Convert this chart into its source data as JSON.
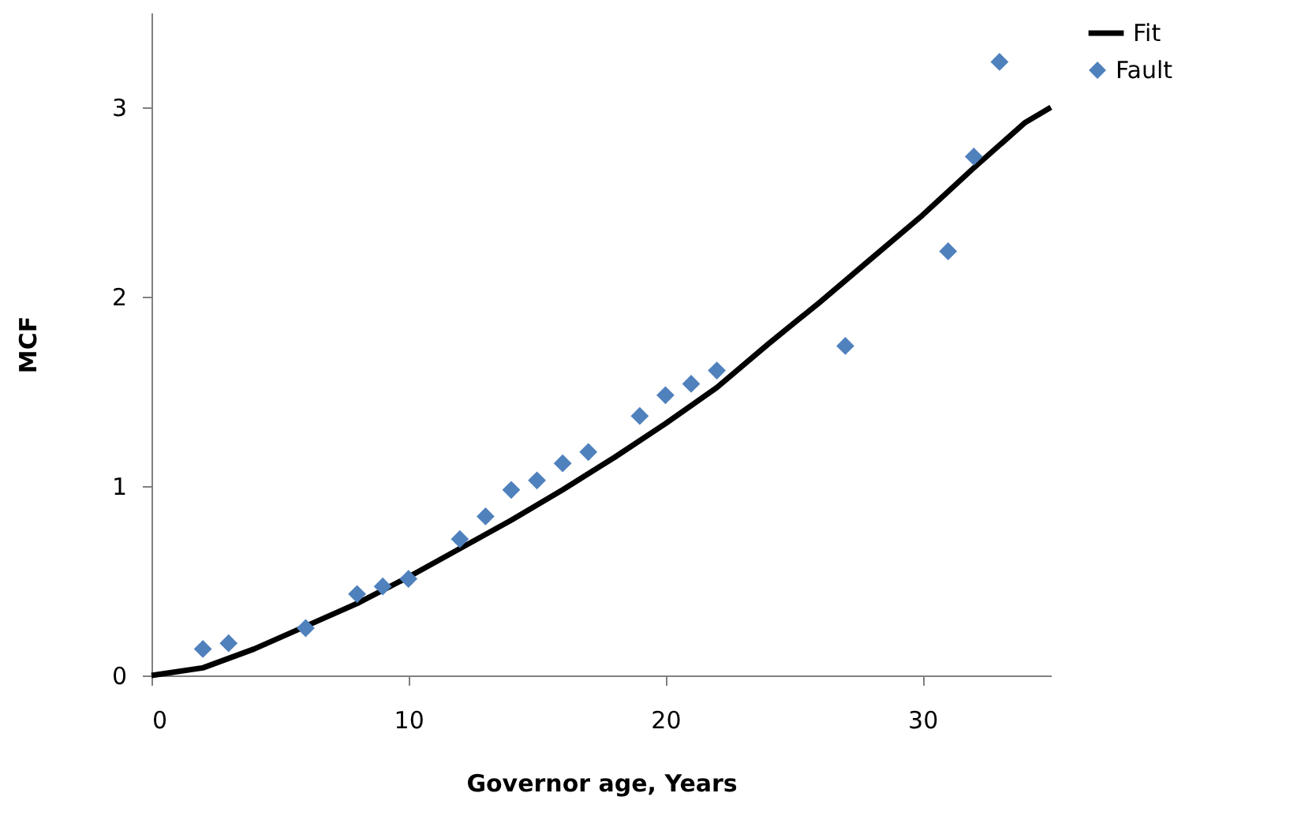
{
  "chart_data": {
    "type": "scatter",
    "xlabel": "Governor age, Years",
    "ylabel": "MCF",
    "xlim": [
      0,
      35
    ],
    "xticks": [
      0,
      10,
      20,
      30
    ],
    "ylim": [
      0,
      3.5
    ],
    "yticks": [
      0,
      1,
      2,
      3
    ],
    "grid": false,
    "legend": "right",
    "series": [
      {
        "name": "Fault",
        "marker": "diamond",
        "color": "#4f81bd",
        "x": [
          2,
          3,
          6,
          8,
          9,
          10,
          12,
          13,
          14,
          15,
          16,
          17,
          19,
          20,
          21,
          22,
          27,
          31,
          32,
          33
        ],
        "values": [
          0.14,
          0.17,
          0.25,
          0.43,
          0.47,
          0.51,
          0.72,
          0.84,
          0.98,
          1.03,
          1.12,
          1.18,
          1.37,
          1.48,
          1.54,
          1.61,
          1.74,
          2.24,
          2.74,
          3.24
        ]
      },
      {
        "name": "Fit",
        "type": "line",
        "color": "#000000",
        "line_style": "solid",
        "x": [
          0,
          2,
          4,
          6,
          8,
          10,
          12,
          14,
          16,
          18,
          20,
          22,
          24,
          26,
          28,
          30,
          32,
          34,
          35
        ],
        "values": [
          0,
          0.04,
          0.14,
          0.26,
          0.38,
          0.52,
          0.67,
          0.82,
          0.98,
          1.15,
          1.33,
          1.52,
          1.75,
          1.97,
          2.2,
          2.43,
          2.68,
          2.92,
          3.0
        ]
      }
    ]
  }
}
